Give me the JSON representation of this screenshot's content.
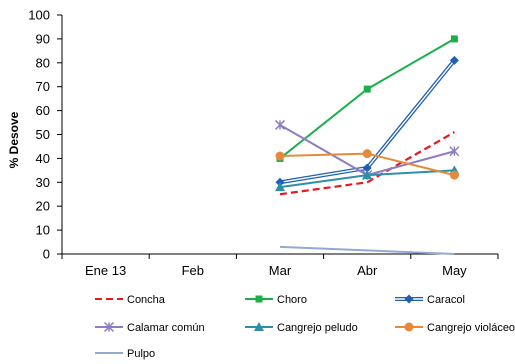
{
  "chart_data": {
    "type": "line",
    "title": "",
    "xlabel": "",
    "ylabel": "% Desove",
    "categories": [
      "Ene 13",
      "Feb",
      "Mar",
      "Abr",
      "May"
    ],
    "ylim": [
      0,
      100
    ],
    "yticks": [
      0,
      10,
      20,
      30,
      40,
      50,
      60,
      70,
      80,
      90,
      100
    ],
    "grid": false,
    "legend_position": "bottom",
    "series": [
      {
        "name": "Concha",
        "color": "#e41a1c",
        "marker": "none",
        "dash": "dashed",
        "values": [
          null,
          null,
          25,
          30,
          51
        ]
      },
      {
        "name": "Choro",
        "color": "#19b04a",
        "marker": "square",
        "dash": "solid",
        "values": [
          null,
          null,
          40,
          69,
          90
        ]
      },
      {
        "name": "Caracol",
        "color": "#1f5fb4",
        "marker": "diamond",
        "dash": "double",
        "values": [
          null,
          null,
          30,
          36,
          81
        ]
      },
      {
        "name": "Calamar común",
        "color": "#8e7cc3",
        "marker": "star",
        "dash": "solid",
        "values": [
          null,
          null,
          54,
          33,
          43
        ]
      },
      {
        "name": "Cangrejo peludo",
        "color": "#2e8fa8",
        "marker": "triangle",
        "dash": "solid",
        "values": [
          null,
          null,
          28,
          33,
          35
        ]
      },
      {
        "name": "Cangrejo violáceo",
        "color": "#e58a3b",
        "marker": "circle",
        "dash": "solid",
        "values": [
          null,
          null,
          41,
          42,
          33
        ]
      },
      {
        "name": "Pulpo",
        "color": "#93a9d1",
        "marker": "none",
        "dash": "solid",
        "values": [
          null,
          null,
          3,
          null,
          0
        ]
      }
    ]
  }
}
